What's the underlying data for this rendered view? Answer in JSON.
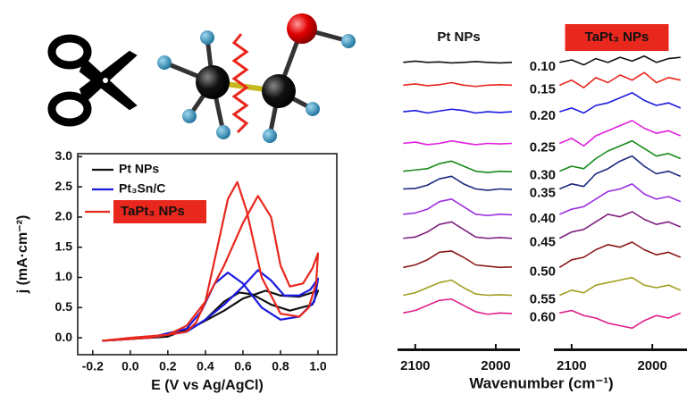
{
  "chart_data": [
    {
      "type": "line",
      "x_label": "E (V vs Ag/AgCl)",
      "y_label": "j (mA·cm⁻²)",
      "xlim": [
        -0.28,
        1.1
      ],
      "ylim": [
        -0.28,
        3.05
      ],
      "xticks": [
        -0.2,
        {
          "value": 0,
          "label": "0.0"
        },
        0.2,
        0.4,
        0.6,
        0.8,
        {
          "value": 1,
          "label": "1.0"
        }
      ],
      "yticks": [
        {
          "value": 0,
          "label": "0.0"
        },
        0.5,
        {
          "value": 1,
          "label": "1.0"
        },
        1.5,
        {
          "value": 2,
          "label": "2.0"
        },
        2.5,
        {
          "value": 3,
          "label": "3.0"
        }
      ],
      "legend": "upper left",
      "series": [
        {
          "name": "Pt NPs",
          "color": "#111111",
          "x": [
            -0.15,
            0.2,
            0.35,
            0.5,
            0.6,
            0.72,
            0.8,
            0.9,
            1.0,
            0.97,
            0.85,
            0.75,
            0.65,
            0.58,
            0.5,
            0.4,
            0.3,
            0.1,
            -0.15
          ],
          "values": [
            -0.05,
            0.02,
            0.2,
            0.45,
            0.65,
            0.78,
            0.7,
            0.68,
            0.78,
            0.55,
            0.45,
            0.55,
            0.72,
            0.75,
            0.6,
            0.3,
            0.1,
            0,
            -0.05
          ]
        },
        {
          "name": "Pt₃Sn/C",
          "color": "#1a1ae0",
          "x": [
            -0.15,
            0.1,
            0.3,
            0.4,
            0.5,
            0.6,
            0.68,
            0.75,
            0.82,
            0.9,
            0.96,
            1.0,
            0.98,
            0.9,
            0.8,
            0.7,
            0.6,
            0.52,
            0.45,
            0.38,
            0.3,
            0.1,
            -0.15
          ],
          "values": [
            -0.05,
            0,
            0.1,
            0.3,
            0.55,
            0.85,
            1.12,
            0.95,
            0.7,
            0.7,
            0.8,
            0.98,
            0.6,
            0.35,
            0.3,
            0.5,
            0.9,
            1.08,
            0.9,
            0.45,
            0.15,
            0,
            -0.05
          ]
        },
        {
          "name": "TaPt₃ NPs",
          "color": "#e8271d",
          "label_background": "#e8271d",
          "x": [
            -0.15,
            0,
            0.2,
            0.3,
            0.4,
            0.5,
            0.6,
            0.68,
            0.75,
            0.8,
            0.85,
            0.92,
            0.97,
            1.0,
            0.99,
            0.95,
            0.9,
            0.8,
            0.7,
            0.62,
            0.57,
            0.52,
            0.45,
            0.4,
            0.35,
            0.3,
            0.1,
            -0.15
          ],
          "values": [
            -0.05,
            0,
            0.05,
            0.2,
            0.6,
            1.2,
            1.9,
            2.35,
            2.0,
            1.2,
            0.85,
            0.9,
            1.15,
            1.4,
            0.9,
            0.5,
            0.35,
            0.4,
            1.0,
            2.1,
            2.58,
            2.3,
            1.3,
            0.6,
            0.25,
            0.1,
            0,
            -0.05
          ]
        }
      ]
    },
    {
      "type": "line",
      "title": "Pt NPs",
      "x": [
        2115,
        2100,
        2085,
        2070,
        2055,
        2040,
        2025,
        2010,
        1995,
        1980
      ],
      "xlim": [
        2122,
        1970
      ],
      "xticks": [
        2100,
        2000
      ],
      "ylim": [
        0,
        12
      ],
      "series": [
        {
          "color": "#111111",
          "values": [
            11.3,
            11.35,
            11.3,
            11.32,
            11.28,
            11.3,
            11.33,
            11.3,
            11.28,
            11.3
          ]
        },
        {
          "color": "#e8271d",
          "values": [
            10.4,
            10.45,
            10.38,
            10.42,
            10.5,
            10.4,
            10.35,
            10.4,
            10.42,
            10.4
          ]
        },
        {
          "color": "#1a1ae0",
          "values": [
            9.35,
            9.4,
            9.3,
            9.38,
            9.45,
            9.4,
            9.3,
            9.35,
            9.32,
            9.35
          ]
        },
        {
          "color": "#e020e0",
          "values": [
            8.1,
            8.15,
            8.05,
            8.1,
            8.2,
            8.12,
            8.05,
            8.1,
            8.08,
            8.1
          ]
        },
        {
          "color": "#1a8a1a",
          "values": [
            7.0,
            7.05,
            7.1,
            7.3,
            7.4,
            7.2,
            7.0,
            6.95,
            7.0,
            6.98
          ]
        },
        {
          "color": "#1a2a80",
          "values": [
            6.3,
            6.32,
            6.45,
            6.7,
            6.8,
            6.5,
            6.3,
            6.25,
            6.3,
            6.28
          ]
        },
        {
          "color": "#9a30e0",
          "values": [
            5.3,
            5.35,
            5.5,
            5.8,
            5.9,
            5.6,
            5.3,
            5.25,
            5.3,
            5.28
          ]
        },
        {
          "color": "#802080",
          "values": [
            4.35,
            4.4,
            4.6,
            4.9,
            5.0,
            4.7,
            4.4,
            4.35,
            4.38,
            4.35
          ]
        },
        {
          "color": "#8a1a1a",
          "values": [
            3.2,
            3.3,
            3.5,
            3.8,
            3.85,
            3.6,
            3.3,
            3.25,
            3.2,
            3.22
          ]
        },
        {
          "color": "#a0a020",
          "values": [
            2.1,
            2.2,
            2.4,
            2.6,
            2.7,
            2.4,
            2.15,
            2.1,
            2.12,
            2.1
          ]
        },
        {
          "color": "#e0208a",
          "values": [
            1.4,
            1.5,
            1.7,
            1.9,
            1.95,
            1.7,
            1.45,
            1.35,
            1.4,
            1.38
          ]
        }
      ]
    },
    {
      "type": "line",
      "title": "TaPt₃ NPs",
      "title_background": "#e8271d",
      "x_label": "Wavenumber (cm⁻¹)",
      "x": [
        2115,
        2100,
        2085,
        2070,
        2055,
        2040,
        2025,
        2010,
        1995,
        1980,
        1965
      ],
      "xlim": [
        2122,
        1957
      ],
      "xticks": [
        2100,
        2000
      ],
      "ylim": [
        0,
        12
      ],
      "series": [
        {
          "name": "0.10",
          "color": "#111111",
          "values": [
            11.3,
            11.4,
            11.2,
            11.45,
            11.3,
            11.5,
            11.35,
            11.55,
            11.3,
            11.45,
            11.5
          ]
        },
        {
          "name": "0.15",
          "color": "#e8271d",
          "values": [
            10.4,
            10.6,
            10.3,
            10.7,
            10.5,
            10.8,
            10.6,
            10.9,
            10.5,
            10.7,
            10.6
          ]
        },
        {
          "name": "0.20",
          "color": "#1a1ae0",
          "values": [
            9.35,
            9.5,
            9.3,
            9.6,
            9.7,
            9.9,
            10.1,
            9.8,
            9.6,
            9.7,
            9.5
          ]
        },
        {
          "name": "0.25",
          "color": "#e020e0",
          "values": [
            8.1,
            8.3,
            8.0,
            8.4,
            8.6,
            8.8,
            9.0,
            8.7,
            8.5,
            8.6,
            8.4
          ]
        },
        {
          "name": "0.30",
          "color": "#1a8a1a",
          "values": [
            7.0,
            7.2,
            7.1,
            7.5,
            7.8,
            8.0,
            8.2,
            7.9,
            7.6,
            7.7,
            7.5
          ]
        },
        {
          "name": "0.35",
          "color": "#1a2a80",
          "values": [
            6.3,
            6.5,
            6.4,
            6.9,
            7.1,
            7.4,
            7.6,
            7.2,
            6.9,
            7.0,
            6.8
          ]
        },
        {
          "name": "0.40",
          "color": "#9a30e0",
          "values": [
            5.3,
            5.5,
            5.6,
            5.9,
            6.2,
            6.3,
            6.5,
            6.1,
            5.9,
            6.0,
            5.8
          ]
        },
        {
          "name": "0.45",
          "color": "#802080",
          "values": [
            4.35,
            4.6,
            4.7,
            5.0,
            5.3,
            5.2,
            5.4,
            5.1,
            4.9,
            5.0,
            4.8
          ]
        },
        {
          "name": "0.50",
          "color": "#8a1a1a",
          "values": [
            3.2,
            3.5,
            3.6,
            3.9,
            4.1,
            4.0,
            4.2,
            3.9,
            3.7,
            3.8,
            3.6
          ]
        },
        {
          "name": "0.55",
          "color": "#a0a020",
          "values": [
            2.1,
            2.3,
            2.2,
            2.5,
            2.6,
            2.7,
            2.8,
            2.5,
            2.4,
            2.5,
            2.3
          ]
        },
        {
          "name": "0.60",
          "color": "#e0208a",
          "values": [
            1.4,
            1.5,
            1.3,
            1.2,
            1.0,
            0.9,
            0.8,
            1.1,
            1.3,
            1.2,
            1.4
          ]
        }
      ]
    }
  ]
}
